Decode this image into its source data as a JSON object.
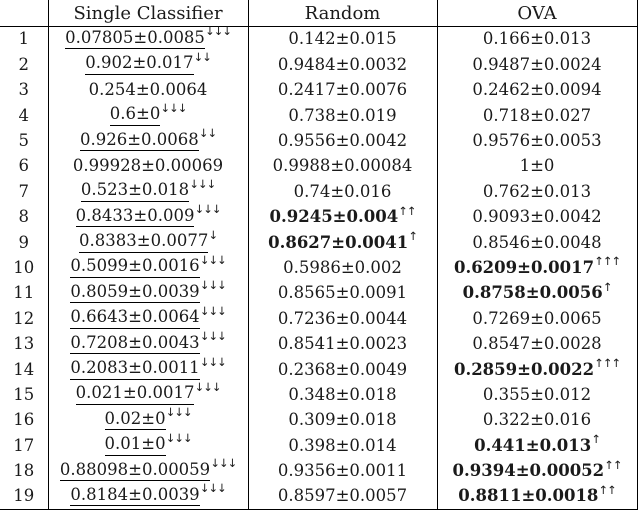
{
  "colors": {
    "background": "#ffffff",
    "text": "#1a1a1a",
    "border": "#000000"
  },
  "table": {
    "headers": {
      "index": "",
      "single_classifier": "Single Classifier",
      "random": "Random",
      "ova": "OVA"
    },
    "rows": [
      {
        "index": "1",
        "single_classifier": {
          "value": "0.07805±0.0085",
          "underline": true,
          "bold": false,
          "arrows": "↓↓↓"
        },
        "random": {
          "value": "0.142±0.015",
          "underline": false,
          "bold": false,
          "arrows": ""
        },
        "ova": {
          "value": "0.166±0.013",
          "underline": false,
          "bold": false,
          "arrows": ""
        }
      },
      {
        "index": "2",
        "single_classifier": {
          "value": "0.902±0.017",
          "underline": true,
          "bold": false,
          "arrows": "↓↓"
        },
        "random": {
          "value": "0.9484±0.0032",
          "underline": false,
          "bold": false,
          "arrows": ""
        },
        "ova": {
          "value": "0.9487±0.0024",
          "underline": false,
          "bold": false,
          "arrows": ""
        }
      },
      {
        "index": "3",
        "single_classifier": {
          "value": "0.254±0.0064",
          "underline": false,
          "bold": false,
          "arrows": ""
        },
        "random": {
          "value": "0.2417±0.0076",
          "underline": false,
          "bold": false,
          "arrows": ""
        },
        "ova": {
          "value": "0.2462±0.0094",
          "underline": false,
          "bold": false,
          "arrows": ""
        }
      },
      {
        "index": "4",
        "single_classifier": {
          "value": "0.6±0",
          "underline": true,
          "bold": false,
          "arrows": "↓↓↓"
        },
        "random": {
          "value": "0.738±0.019",
          "underline": false,
          "bold": false,
          "arrows": ""
        },
        "ova": {
          "value": "0.718±0.027",
          "underline": false,
          "bold": false,
          "arrows": ""
        }
      },
      {
        "index": "5",
        "single_classifier": {
          "value": "0.926±0.0068",
          "underline": true,
          "bold": false,
          "arrows": "↓↓"
        },
        "random": {
          "value": "0.9556±0.0042",
          "underline": false,
          "bold": false,
          "arrows": ""
        },
        "ova": {
          "value": "0.9576±0.0053",
          "underline": false,
          "bold": false,
          "arrows": ""
        }
      },
      {
        "index": "6",
        "single_classifier": {
          "value": "0.99928±0.00069",
          "underline": false,
          "bold": false,
          "arrows": ""
        },
        "random": {
          "value": "0.9988±0.00084",
          "underline": false,
          "bold": false,
          "arrows": ""
        },
        "ova": {
          "value": "1±0",
          "underline": false,
          "bold": false,
          "arrows": ""
        }
      },
      {
        "index": "7",
        "single_classifier": {
          "value": "0.523±0.018",
          "underline": true,
          "bold": false,
          "arrows": "↓↓↓"
        },
        "random": {
          "value": "0.74±0.016",
          "underline": false,
          "bold": false,
          "arrows": ""
        },
        "ova": {
          "value": "0.762±0.013",
          "underline": false,
          "bold": false,
          "arrows": ""
        }
      },
      {
        "index": "8",
        "single_classifier": {
          "value": "0.8433±0.009",
          "underline": true,
          "bold": false,
          "arrows": "↓↓↓"
        },
        "random": {
          "value": "0.9245±0.004",
          "underline": false,
          "bold": true,
          "arrows": "↑↑"
        },
        "ova": {
          "value": "0.9093±0.0042",
          "underline": false,
          "bold": false,
          "arrows": ""
        }
      },
      {
        "index": "9",
        "single_classifier": {
          "value": "0.8383±0.0077",
          "underline": true,
          "bold": false,
          "arrows": "↓"
        },
        "random": {
          "value": "0.8627±0.0041",
          "underline": false,
          "bold": true,
          "arrows": "↑"
        },
        "ova": {
          "value": "0.8546±0.0048",
          "underline": false,
          "bold": false,
          "arrows": ""
        }
      },
      {
        "index": "10",
        "single_classifier": {
          "value": "0.5099±0.0016",
          "underline": true,
          "bold": false,
          "arrows": "↓↓↓"
        },
        "random": {
          "value": "0.5986±0.002",
          "underline": false,
          "bold": false,
          "arrows": ""
        },
        "ova": {
          "value": "0.6209±0.0017",
          "underline": false,
          "bold": true,
          "arrows": "↑↑↑"
        }
      },
      {
        "index": "11",
        "single_classifier": {
          "value": "0.8059±0.0039",
          "underline": true,
          "bold": false,
          "arrows": "↓↓↓"
        },
        "random": {
          "value": "0.8565±0.0091",
          "underline": false,
          "bold": false,
          "arrows": ""
        },
        "ova": {
          "value": "0.8758±0.0056",
          "underline": false,
          "bold": true,
          "arrows": "↑"
        }
      },
      {
        "index": "12",
        "single_classifier": {
          "value": "0.6643±0.0064",
          "underline": true,
          "bold": false,
          "arrows": "↓↓↓"
        },
        "random": {
          "value": "0.7236±0.0044",
          "underline": false,
          "bold": false,
          "arrows": ""
        },
        "ova": {
          "value": "0.7269±0.0065",
          "underline": false,
          "bold": false,
          "arrows": ""
        }
      },
      {
        "index": "13",
        "single_classifier": {
          "value": "0.7208±0.0043",
          "underline": true,
          "bold": false,
          "arrows": "↓↓↓"
        },
        "random": {
          "value": "0.8541±0.0023",
          "underline": false,
          "bold": false,
          "arrows": ""
        },
        "ova": {
          "value": "0.8547±0.0028",
          "underline": false,
          "bold": false,
          "arrows": ""
        }
      },
      {
        "index": "14",
        "single_classifier": {
          "value": "0.2083±0.0011",
          "underline": true,
          "bold": false,
          "arrows": "↓↓↓"
        },
        "random": {
          "value": "0.2368±0.0049",
          "underline": false,
          "bold": false,
          "arrows": ""
        },
        "ova": {
          "value": "0.2859±0.0022",
          "underline": false,
          "bold": true,
          "arrows": "↑↑↑"
        }
      },
      {
        "index": "15",
        "single_classifier": {
          "value": "0.021±0.0017",
          "underline": true,
          "bold": false,
          "arrows": "↓↓↓"
        },
        "random": {
          "value": "0.348±0.018",
          "underline": false,
          "bold": false,
          "arrows": ""
        },
        "ova": {
          "value": "0.355±0.012",
          "underline": false,
          "bold": false,
          "arrows": ""
        }
      },
      {
        "index": "16",
        "single_classifier": {
          "value": "0.02±0",
          "underline": true,
          "bold": false,
          "arrows": "↓↓↓"
        },
        "random": {
          "value": "0.309±0.018",
          "underline": false,
          "bold": false,
          "arrows": ""
        },
        "ova": {
          "value": "0.322±0.016",
          "underline": false,
          "bold": false,
          "arrows": ""
        }
      },
      {
        "index": "17",
        "single_classifier": {
          "value": "0.01±0",
          "underline": true,
          "bold": false,
          "arrows": "↓↓↓"
        },
        "random": {
          "value": "0.398±0.014",
          "underline": false,
          "bold": false,
          "arrows": ""
        },
        "ova": {
          "value": "0.441±0.013",
          "underline": false,
          "bold": true,
          "arrows": "↑"
        }
      },
      {
        "index": "18",
        "single_classifier": {
          "value": "0.88098±0.00059",
          "underline": true,
          "bold": false,
          "arrows": "↓↓↓"
        },
        "random": {
          "value": "0.9356±0.0011",
          "underline": false,
          "bold": false,
          "arrows": ""
        },
        "ova": {
          "value": "0.9394±0.00052",
          "underline": false,
          "bold": true,
          "arrows": "↑↑"
        }
      },
      {
        "index": "19",
        "single_classifier": {
          "value": "0.8184±0.0039",
          "underline": true,
          "bold": false,
          "arrows": "↓↓↓"
        },
        "random": {
          "value": "0.8597±0.0057",
          "underline": false,
          "bold": false,
          "arrows": ""
        },
        "ova": {
          "value": "0.8811±0.0018",
          "underline": false,
          "bold": true,
          "arrows": "↑↑"
        }
      }
    ]
  }
}
